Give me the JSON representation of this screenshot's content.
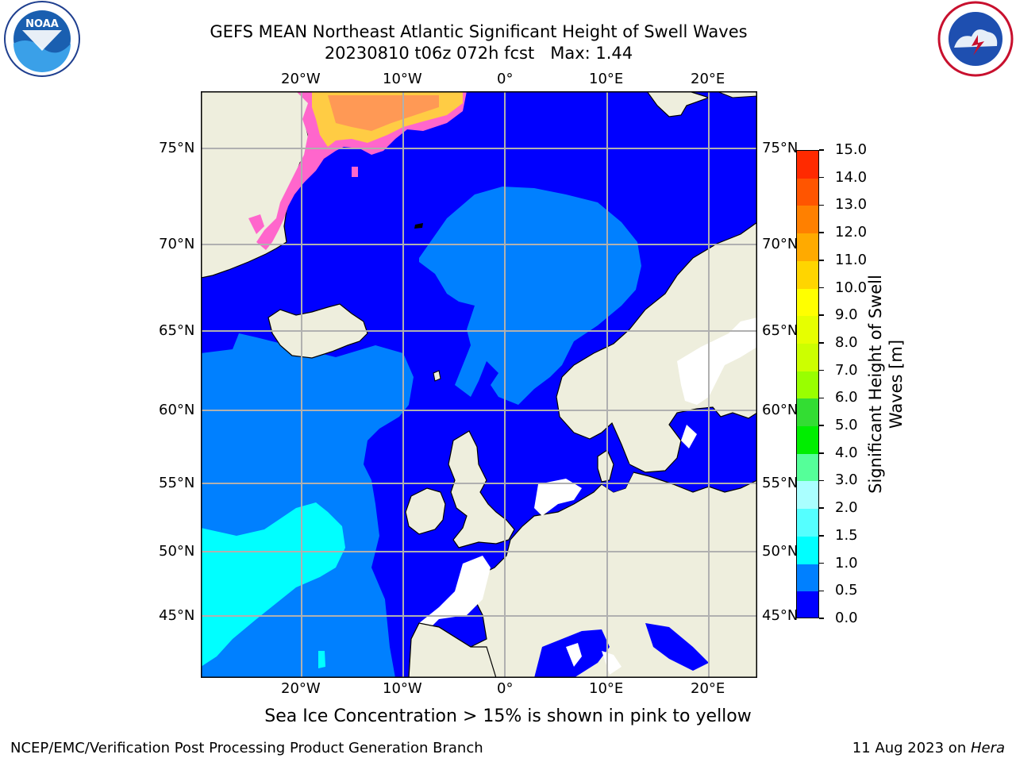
{
  "title": {
    "line1": "GEFS MEAN Northeast Atlantic Significant Height of Swell Waves",
    "line2": "20230810 t06z 072h fcst   Max: 1.44"
  },
  "logos": {
    "left": {
      "name": "NOAA",
      "ring_text": "NATIONAL OCEANIC AND ATMOSPHERIC ADMINISTRATION · U.S. DEPARTMENT OF COMMERCE"
    },
    "right": {
      "ring_text": "NATIONAL WEATHER SERVICE"
    }
  },
  "map": {
    "lon_labels": [
      "20°W",
      "10°W",
      "0°",
      "10°E",
      "20°E"
    ],
    "lat_labels": [
      "75°N",
      "70°N",
      "65°N",
      "60°N",
      "55°N",
      "50°N",
      "45°N"
    ],
    "colors": {
      "ocean_low": "#0000ff",
      "ocean_mid": "#0080ff",
      "ocean_high": "#00ffff",
      "land": "#eeeedd",
      "grid": "#b0b0b0",
      "ice": "#ff66cc",
      "ice_high": "#ffcc44"
    }
  },
  "colorbar": {
    "label": "Significant Height of Swell Waves [m]",
    "ticks": [
      "15.0",
      "14.0",
      "13.0",
      "12.0",
      "11.0",
      "10.0",
      "9.0",
      "8.0",
      "7.0",
      "6.0",
      "5.0",
      "4.0",
      "3.0",
      "2.0",
      "1.5",
      "1.0",
      "0.5",
      "0.0"
    ],
    "colors": [
      "#ff0000",
      "#ff2a00",
      "#ff5500",
      "#ff8000",
      "#ffaa00",
      "#ffd500",
      "#ffff00",
      "#e6ff00",
      "#ccff00",
      "#99ff00",
      "#33dd33",
      "#00ee00",
      "#55ff99",
      "#aaffff",
      "#55ffff",
      "#00ffff",
      "#0080ff",
      "#0000ff"
    ]
  },
  "caption": "Sea Ice Concentration > 15% is shown in pink to yellow",
  "footer": {
    "left": "NCEP/EMC/Verification Post Processing Product Generation Branch",
    "right_date": "11 Aug 2023 on ",
    "right_host": "Hera"
  }
}
